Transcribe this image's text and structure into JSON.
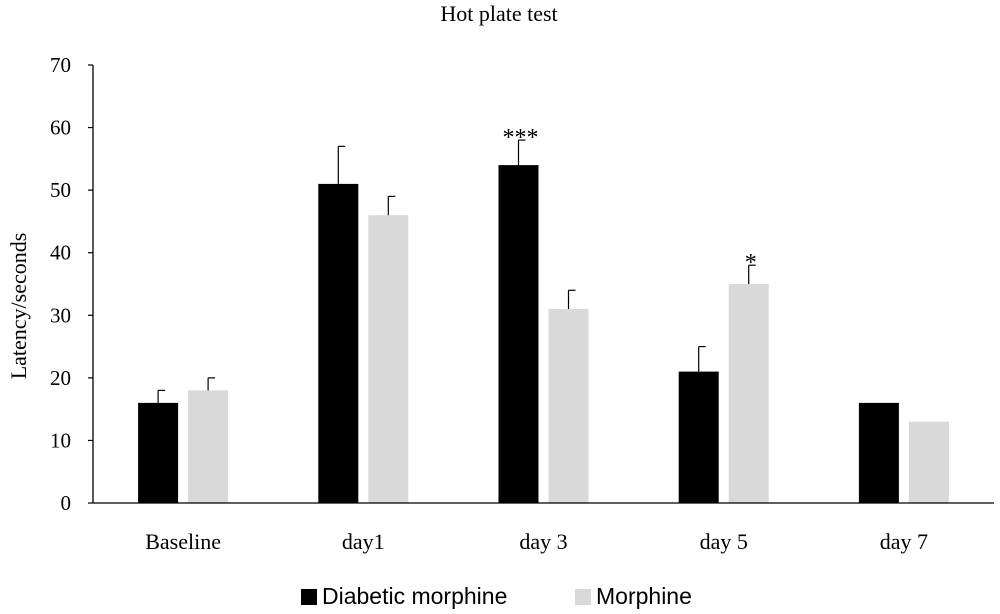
{
  "chart_data": {
    "type": "bar",
    "title": "Hot plate test",
    "xlabel": "",
    "ylabel": "Latency/seconds",
    "ylim": [
      0,
      70
    ],
    "yticks": [
      "0",
      "10",
      "20",
      "30",
      "40",
      "50",
      "60",
      "70"
    ],
    "categories": [
      "Baseline",
      "day1",
      "day 3",
      "day 5",
      "day 7"
    ],
    "grid": false,
    "legend_position": "bottom",
    "series": [
      {
        "name": "Diabetic morphine",
        "color": "#000000",
        "values": [
          16,
          51,
          54,
          21,
          16
        ],
        "error": [
          2,
          6,
          4,
          4,
          0
        ],
        "annotations": [
          "",
          "",
          "***",
          "",
          ""
        ]
      },
      {
        "name": "Morphine",
        "color": "#d9d9d9",
        "values": [
          18,
          46,
          31,
          35,
          13
        ],
        "error": [
          2,
          3,
          3,
          3,
          0
        ],
        "annotations": [
          "",
          "",
          "",
          "*",
          ""
        ]
      }
    ]
  }
}
